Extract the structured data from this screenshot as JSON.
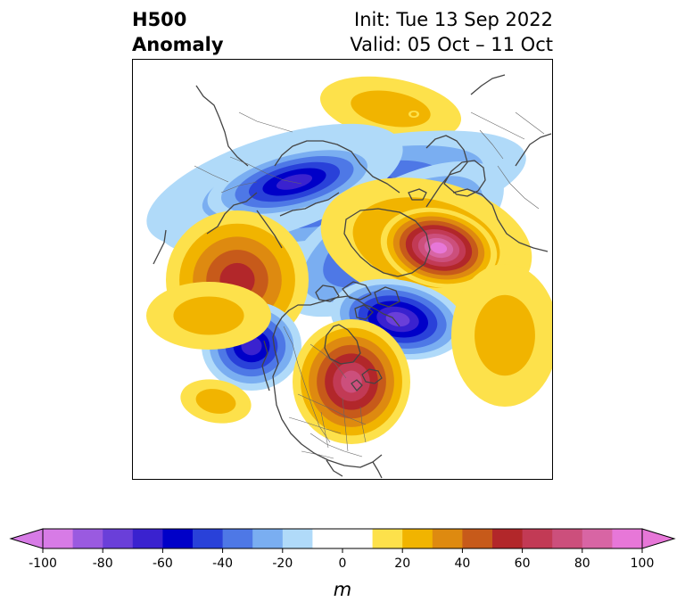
{
  "title": {
    "variable": "H500",
    "subtitle": "Anomaly",
    "init": "Init: Tue 13 Sep 2022",
    "valid": "Valid: 05 Oct – 11 Oct"
  },
  "map": {
    "projection": "north-polar-stereographic",
    "anomaly_centers": [
      {
        "region": "Arctic / Greenland",
        "sign": "positive",
        "value": 90
      },
      {
        "region": "Siberia / Arctic Ocean",
        "sign": "negative",
        "value": -60
      },
      {
        "region": "Scandinavia",
        "sign": "negative",
        "value": -70
      },
      {
        "region": "Eastern Asia",
        "sign": "positive",
        "value": 50
      },
      {
        "region": "Gulf of Alaska",
        "sign": "negative",
        "value": -60
      },
      {
        "region": "Eastern Canada / Great Lakes",
        "sign": "positive",
        "value": 70
      },
      {
        "region": "Central Asia",
        "sign": "positive",
        "value": 20
      },
      {
        "region": "North Pacific",
        "sign": "positive",
        "value": 20
      }
    ]
  },
  "colorbar": {
    "ticks": [
      "-100",
      "-80",
      "-60",
      "-40",
      "-20",
      "0",
      "20",
      "40",
      "60",
      "80",
      "100"
    ],
    "unit": "m",
    "levels": [
      -100,
      -90,
      -80,
      -70,
      -60,
      -50,
      -40,
      -30,
      -20,
      -10,
      10,
      20,
      30,
      40,
      50,
      60,
      70,
      80,
      90,
      100
    ],
    "colors": [
      "#d77be6",
      "#9a5ae0",
      "#6a3fd9",
      "#3a22cf",
      "#0000c8",
      "#2941d9",
      "#4e78e6",
      "#7aaef1",
      "#b0daf9",
      "#ffffff",
      "#fde14b",
      "#f1b400",
      "#de8a10",
      "#c75a1a",
      "#b2272a",
      "#c23a55",
      "#cc4f7c",
      "#d865a4",
      "#e777d8"
    ],
    "extend_low": "#d77be6",
    "extend_high": "#e777d8"
  }
}
